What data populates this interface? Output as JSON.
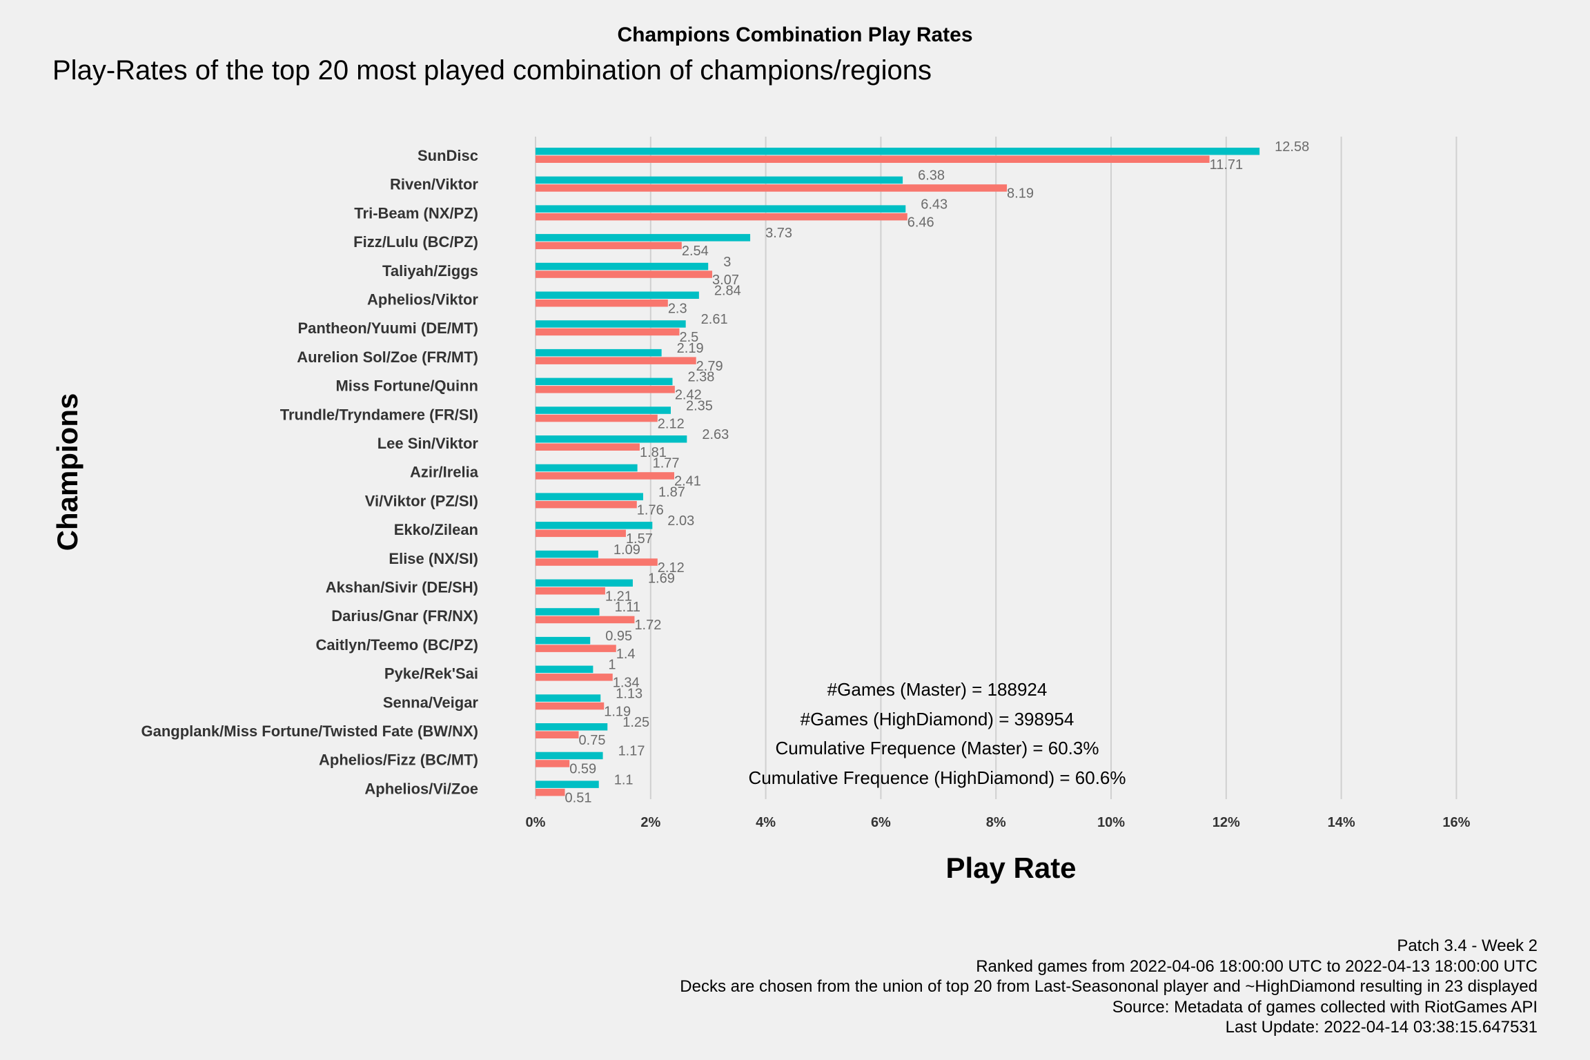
{
  "title": "Champions Combination Play Rates",
  "subtitle": "Play-Rates of the top 20 most played combination of champions/regions",
  "annotations": [
    "#Games (Master) = 188924",
    "#Games (HighDiamond) = 398954",
    "Cumulative Frequence (Master) = 60.3%",
    "Cumulative Frequence (HighDiamond) = 60.6%"
  ],
  "footer": [
    "Patch 3.4 - Week 2",
    "Ranked games from 2022-04-06 18:00:00 UTC to 2022-04-13 18:00:00 UTC",
    "Decks are chosen from the union of top 20 from Last-Seasononal player and ~HighDiamond resulting in 23 displayed",
    "Source: Metadata of games collected with RiotGames API",
    "Last Update: 2022-04-14 03:38:15.647531"
  ],
  "colors": {
    "background": "#f0f0f0",
    "grid": "#d0d0d0",
    "series_master": "#00bfc4",
    "series_highdiamond": "#f8766d",
    "value_label": "#6b6b6b",
    "category_label": "#333333"
  },
  "chart_data": {
    "type": "bar",
    "orientation": "horizontal",
    "title": "Champions Combination Play Rates",
    "subtitle": "Play-Rates of the top 20 most played combination of champions/regions",
    "xlabel": "Play Rate",
    "ylabel": "Champions",
    "xlim": [
      0,
      16
    ],
    "x_ticks": [
      0,
      2,
      4,
      6,
      8,
      10,
      12,
      14,
      16
    ],
    "x_tick_labels": [
      "0%",
      "2%",
      "4%",
      "6%",
      "8%",
      "10%",
      "12%",
      "14%",
      "16%"
    ],
    "grid": "vertical major gridlines",
    "legend": "none",
    "categories": [
      "SunDisc",
      "Riven/Viktor",
      "Tri-Beam (NX/PZ)",
      "Fizz/Lulu (BC/PZ)",
      "Taliyah/Ziggs",
      "Aphelios/Viktor",
      "Pantheon/Yuumi (DE/MT)",
      "Aurelion Sol/Zoe (FR/MT)",
      "Miss Fortune/Quinn",
      "Trundle/Tryndamere (FR/SI)",
      "Lee Sin/Viktor",
      "Azir/Irelia",
      "Vi/Viktor (PZ/SI)",
      "Ekko/Zilean",
      "Elise (NX/SI)",
      "Akshan/Sivir (DE/SH)",
      "Darius/Gnar (FR/NX)",
      "Caitlyn/Teemo (BC/PZ)",
      "Pyke/Rek'Sai",
      "Senna/Veigar",
      "Gangplank/Miss Fortune/Twisted Fate (BW/NX)",
      "Aphelios/Fizz (BC/MT)",
      "Aphelios/Vi/Zoe"
    ],
    "series": [
      {
        "color": "#00bfc4",
        "values": [
          12.58,
          6.38,
          6.43,
          3.73,
          3,
          2.84,
          2.61,
          2.19,
          2.38,
          2.35,
          2.63,
          1.77,
          1.87,
          2.03,
          1.09,
          1.69,
          1.11,
          0.95,
          1,
          1.13,
          1.25,
          1.17,
          1.1
        ]
      },
      {
        "color": "#f8766d",
        "values": [
          11.71,
          8.19,
          6.46,
          2.54,
          3.07,
          2.3,
          2.5,
          2.79,
          2.42,
          2.12,
          1.81,
          2.41,
          1.76,
          1.57,
          2.12,
          1.21,
          1.72,
          1.4,
          1.34,
          1.19,
          0.75,
          0.59,
          0.51
        ]
      }
    ]
  }
}
